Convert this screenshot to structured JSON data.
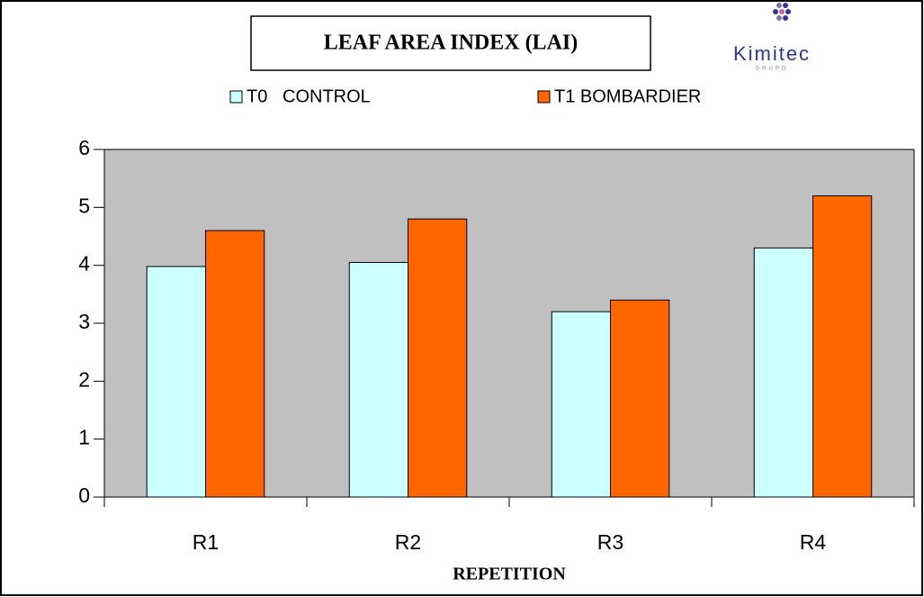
{
  "chart_data": {
    "type": "bar",
    "title": "LEAF AREA INDEX (LAI)",
    "logo": "Kimitec",
    "logo_subtitle": "GRUPO",
    "x_label": "REPETITION",
    "categories": [
      "R1",
      "R2",
      "R3",
      "R4"
    ],
    "series": [
      {
        "name": "T0   CONTROL",
        "color": "#ccffff",
        "values": [
          3.98,
          4.05,
          3.2,
          4.3
        ]
      },
      {
        "name": "T1 BOMBARDIER",
        "color": "#ff6600",
        "values": [
          4.6,
          4.8,
          3.4,
          5.2
        ]
      }
    ],
    "ylim": [
      0,
      6
    ],
    "yticks": [
      0,
      1,
      2,
      3,
      4,
      5,
      6
    ],
    "plot_background": "#c0c0c0"
  }
}
